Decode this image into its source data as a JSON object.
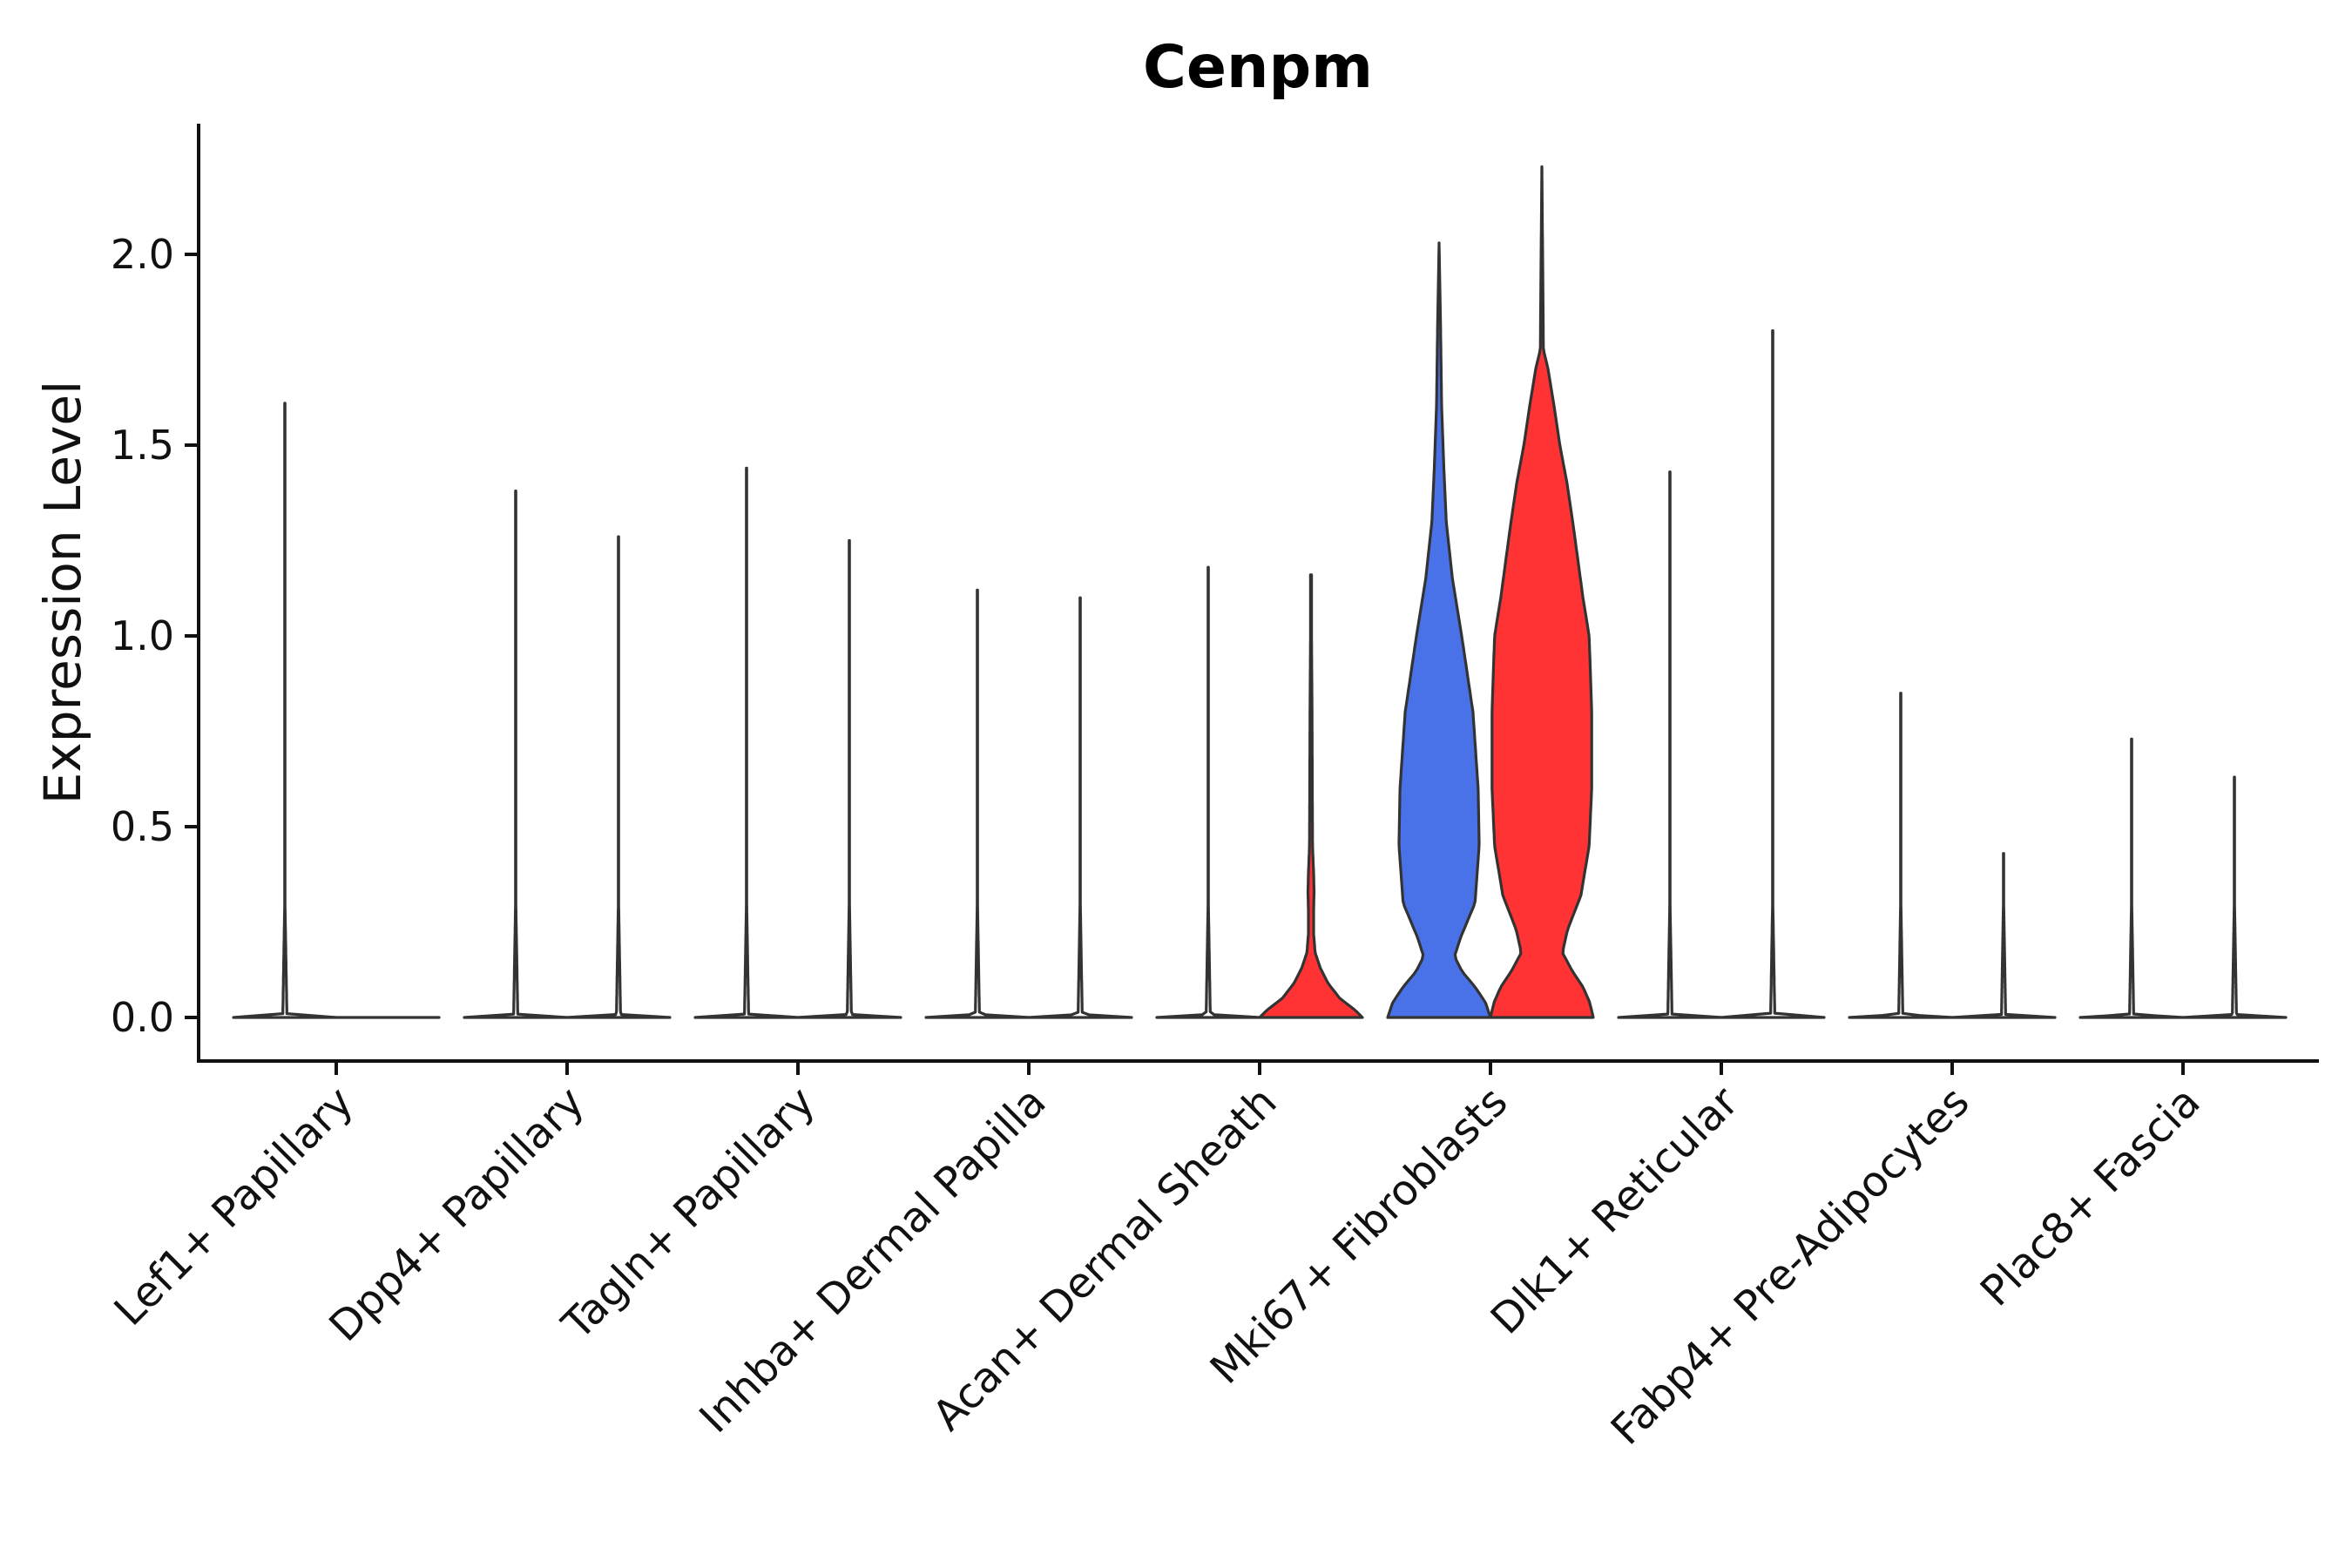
{
  "chart_data": {
    "type": "violin",
    "title": "Cenpm",
    "xlabel": "",
    "ylabel": "Expression Level",
    "ylim": [
      -0.11,
      2.35
    ],
    "yticks": [
      0.0,
      0.5,
      1.0,
      1.5,
      2.0
    ],
    "ytick_labels": [
      "0.0",
      "0.5",
      "1.0",
      "1.5",
      "2.0"
    ],
    "categories": [
      "Lef1+ Papillary",
      "Dpp4+ Papillary",
      "Tagln+ Papillary",
      "Inhba+ Dermal Papilla",
      "Acan+ Dermal Sheath",
      "Mki67+ Fibroblasts",
      "Dlk1+ Reticular",
      "Fabp4+ Pre-Adipocytes",
      "Plac8+ Fascia"
    ],
    "split_groups": [
      "left",
      "right"
    ],
    "colors": {
      "left": "#4a72e8",
      "right": "#ff3333",
      "none": "#ffffff"
    },
    "series": [
      {
        "category": "Lef1+ Papillary",
        "halves": [
          {
            "side": "left",
            "max": 1.61,
            "profile": [
              [
                0,
                1.0
              ],
              [
                0.008,
                0.04
              ],
              [
                0.3,
                0.003
              ],
              [
                1.0,
                0.003
              ]
            ]
          },
          {
            "side": "right",
            "max": 0.0,
            "profile": [
              [
                0,
                1.0
              ]
            ]
          }
        ]
      },
      {
        "category": "Dpp4+ Papillary",
        "halves": [
          {
            "side": "left",
            "max": 1.38,
            "profile": [
              [
                0,
                1.0
              ],
              [
                0.008,
                0.04
              ],
              [
                0.3,
                0.003
              ],
              [
                1.0,
                0.003
              ]
            ]
          },
          {
            "side": "right",
            "max": 1.26,
            "profile": [
              [
                0,
                1.0
              ],
              [
                0.008,
                0.04
              ],
              [
                0.3,
                0.003
              ],
              [
                1.0,
                0.003
              ]
            ]
          }
        ]
      },
      {
        "category": "Tagln+ Papillary",
        "halves": [
          {
            "side": "left",
            "max": 1.44,
            "profile": [
              [
                0,
                1.0
              ],
              [
                0.008,
                0.04
              ],
              [
                0.3,
                0.003
              ],
              [
                1.0,
                0.003
              ]
            ]
          },
          {
            "side": "right",
            "max": 1.25,
            "profile": [
              [
                0,
                1.0
              ],
              [
                0.008,
                0.04
              ],
              [
                0.3,
                0.003
              ],
              [
                1.0,
                0.003
              ]
            ]
          }
        ]
      },
      {
        "category": "Inhba+ Dermal Papilla",
        "halves": [
          {
            "side": "left",
            "max": 1.12,
            "profile": [
              [
                0,
                1.0
              ],
              [
                0.008,
                0.04
              ],
              [
                0.3,
                0.003
              ],
              [
                1.0,
                0.003
              ]
            ]
          },
          {
            "side": "right",
            "max": 1.1,
            "profile": [
              [
                0,
                1.0
              ],
              [
                0.008,
                0.04
              ],
              [
                0.3,
                0.003
              ],
              [
                1.0,
                0.003
              ]
            ]
          }
        ]
      },
      {
        "category": "Acan+ Dermal Sheath",
        "halves": [
          {
            "side": "left",
            "max": 1.18,
            "profile": [
              [
                0,
                1.0
              ],
              [
                0.008,
                0.04
              ],
              [
                0.3,
                0.003
              ],
              [
                1.0,
                0.003
              ]
            ]
          },
          {
            "side": "right",
            "max": 1.16,
            "profile": [
              [
                0,
                1.0
              ],
              [
                0.02,
                0.85
              ],
              [
                0.05,
                0.56
              ],
              [
                0.09,
                0.33
              ],
              [
                0.13,
                0.18
              ],
              [
                0.17,
                0.08
              ],
              [
                0.22,
                0.05
              ],
              [
                0.28,
                0.05
              ],
              [
                0.33,
                0.06
              ],
              [
                0.38,
                0.05
              ],
              [
                0.45,
                0.03
              ],
              [
                0.6,
                0.025
              ],
              [
                0.8,
                0.02
              ],
              [
                1.0,
                0.01
              ]
            ]
          }
        ]
      },
      {
        "category": "Mki67+ Fibroblasts",
        "halves": [
          {
            "side": "left",
            "max": 2.03,
            "profile": [
              [
                0,
                1.0
              ],
              [
                0.04,
                0.9
              ],
              [
                0.08,
                0.7
              ],
              [
                0.12,
                0.45
              ],
              [
                0.16,
                0.3
              ],
              [
                0.21,
                0.42
              ],
              [
                0.3,
                0.7
              ],
              [
                0.45,
                0.78
              ],
              [
                0.6,
                0.76
              ],
              [
                0.8,
                0.66
              ],
              [
                1.0,
                0.44
              ],
              [
                1.15,
                0.26
              ],
              [
                1.3,
                0.14
              ],
              [
                1.45,
                0.09
              ],
              [
                1.6,
                0.05
              ],
              [
                1.8,
                0.03
              ],
              [
                2.03,
                0.0
              ]
            ]
          },
          {
            "side": "right",
            "max": 2.23,
            "profile": [
              [
                0,
                1.0
              ],
              [
                0.04,
                0.93
              ],
              [
                0.08,
                0.8
              ],
              [
                0.12,
                0.6
              ],
              [
                0.17,
                0.4
              ],
              [
                0.23,
                0.5
              ],
              [
                0.32,
                0.76
              ],
              [
                0.45,
                0.92
              ],
              [
                0.6,
                0.97
              ],
              [
                0.8,
                0.97
              ],
              [
                1.0,
                0.92
              ],
              [
                1.1,
                0.8
              ],
              [
                1.2,
                0.7
              ],
              [
                1.3,
                0.6
              ],
              [
                1.4,
                0.49
              ],
              [
                1.5,
                0.35
              ],
              [
                1.6,
                0.24
              ],
              [
                1.7,
                0.12
              ],
              [
                1.75,
                0.03
              ],
              [
                2.0,
                0.015
              ],
              [
                2.23,
                0.0
              ]
            ]
          }
        ]
      },
      {
        "category": "Dlk1+ Reticular",
        "halves": [
          {
            "side": "left",
            "max": 1.43,
            "profile": [
              [
                0,
                1.0
              ],
              [
                0.008,
                0.04
              ],
              [
                0.3,
                0.003
              ],
              [
                1.0,
                0.003
              ]
            ]
          },
          {
            "side": "right",
            "max": 1.8,
            "profile": [
              [
                0,
                1.0
              ],
              [
                0.008,
                0.04
              ],
              [
                0.3,
                0.003
              ],
              [
                1.0,
                0.003
              ]
            ]
          }
        ]
      },
      {
        "category": "Fabp4+ Pre-Adipocytes",
        "halves": [
          {
            "side": "left",
            "max": 0.85,
            "profile": [
              [
                0,
                1.0
              ],
              [
                0.008,
                0.04
              ],
              [
                0.3,
                0.003
              ],
              [
                1.0,
                0.003
              ]
            ]
          },
          {
            "side": "right",
            "max": 0.43,
            "profile": [
              [
                0,
                1.0
              ],
              [
                0.008,
                0.04
              ],
              [
                0.3,
                0.003
              ],
              [
                1.0,
                0.003
              ]
            ]
          }
        ]
      },
      {
        "category": "Plac8+ Fascia",
        "halves": [
          {
            "side": "left",
            "max": 0.73,
            "profile": [
              [
                0,
                1.0
              ],
              [
                0.008,
                0.04
              ],
              [
                0.3,
                0.003
              ],
              [
                1.0,
                0.003
              ]
            ]
          },
          {
            "side": "right",
            "max": 0.63,
            "profile": [
              [
                0,
                1.0
              ],
              [
                0.008,
                0.04
              ],
              [
                0.3,
                0.003
              ],
              [
                1.0,
                0.003
              ]
            ]
          }
        ]
      }
    ]
  }
}
